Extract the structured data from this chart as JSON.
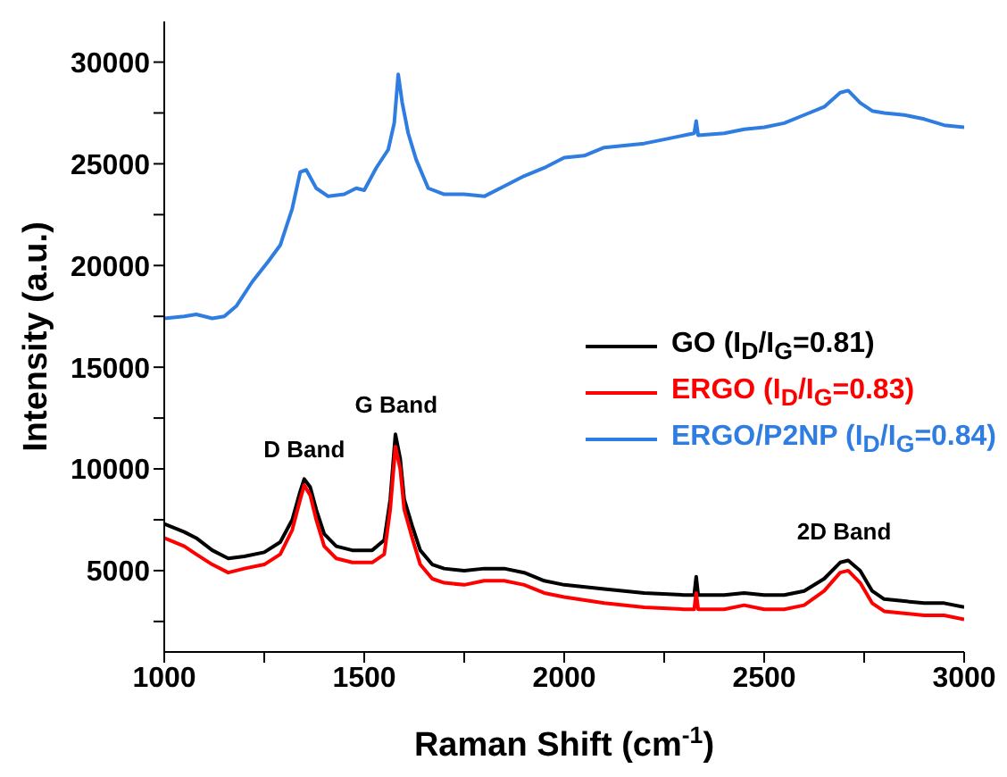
{
  "chart_data": {
    "type": "line",
    "xlabel": "Raman Shift (cm$^{-1}$)",
    "ylabel": "Intensity (a.u.)",
    "xlim": [
      1000,
      3000
    ],
    "xticks": [
      1000,
      {
        "value": 1250,
        "label": null
      },
      1500,
      {
        "value": 1750,
        "label": null
      },
      2000,
      {
        "value": 2250,
        "label": null
      },
      2500,
      {
        "value": 2750,
        "label": null
      },
      3000
    ],
    "ylim": [
      1000,
      32000
    ],
    "yticks": [
      {
        "value": 2500,
        "label": null
      },
      5000,
      {
        "value": 7500,
        "label": null
      },
      10000,
      {
        "value": 12500,
        "label": null
      },
      15000,
      {
        "value": 17500,
        "label": null
      },
      20000,
      {
        "value": 22500,
        "label": null
      },
      25000,
      {
        "value": 27500,
        "label": null
      },
      30000
    ],
    "grid": false,
    "legend": "right",
    "marker": "none",
    "line_style": "solid",
    "annotations": [
      {
        "text": "D Band",
        "x": 1350,
        "y": 9500
      },
      {
        "text": "G Band",
        "x": 1580,
        "y": 11700
      },
      {
        "text": "2D Band",
        "x": 2700,
        "y": 5500
      }
    ],
    "series": [
      {
        "name": "GO (I$_{D}$/I$_{G}$=0.81)",
        "color": "#000000",
        "x": [
          1000,
          1050,
          1080,
          1120,
          1160,
          1200,
          1250,
          1290,
          1320,
          1340,
          1350,
          1365,
          1380,
          1400,
          1430,
          1470,
          1520,
          1550,
          1565,
          1578,
          1590,
          1600,
          1620,
          1640,
          1670,
          1700,
          1750,
          1800,
          1850,
          1900,
          1950,
          2000,
          2100,
          2200,
          2300,
          2325,
          2330,
          2335,
          2400,
          2450,
          2500,
          2550,
          2600,
          2650,
          2690,
          2710,
          2740,
          2770,
          2800,
          2850,
          2900,
          2950,
          3000
        ],
        "values": [
          7300,
          6900,
          6600,
          6000,
          5600,
          5700,
          5900,
          6400,
          7500,
          8900,
          9500,
          9100,
          8000,
          6800,
          6200,
          6000,
          6000,
          6500,
          8500,
          11700,
          10500,
          8500,
          7200,
          6000,
          5300,
          5100,
          5000,
          5100,
          5100,
          4900,
          4500,
          4300,
          4100,
          3900,
          3800,
          3800,
          4700,
          3800,
          3800,
          3900,
          3800,
          3800,
          4000,
          4600,
          5400,
          5500,
          5000,
          4000,
          3600,
          3500,
          3400,
          3400,
          3200
        ]
      },
      {
        "name": "ERGO (I$_{D}$/I$_{G}$=0.83)",
        "color": "#ff0000",
        "x": [
          1000,
          1050,
          1080,
          1120,
          1160,
          1200,
          1250,
          1290,
          1320,
          1340,
          1350,
          1365,
          1380,
          1400,
          1430,
          1470,
          1520,
          1550,
          1565,
          1578,
          1590,
          1600,
          1620,
          1640,
          1670,
          1700,
          1750,
          1800,
          1850,
          1900,
          1950,
          2000,
          2100,
          2200,
          2300,
          2325,
          2330,
          2335,
          2400,
          2450,
          2500,
          2550,
          2600,
          2650,
          2690,
          2710,
          2740,
          2770,
          2800,
          2850,
          2900,
          2950,
          3000
        ],
        "values": [
          6600,
          6200,
          5800,
          5300,
          4900,
          5100,
          5300,
          5800,
          7000,
          8500,
          9200,
          8700,
          7500,
          6200,
          5600,
          5400,
          5400,
          5800,
          8000,
          11100,
          10000,
          8000,
          6600,
          5300,
          4600,
          4400,
          4300,
          4500,
          4500,
          4300,
          3900,
          3700,
          3400,
          3200,
          3100,
          3100,
          3900,
          3100,
          3100,
          3300,
          3100,
          3100,
          3300,
          4000,
          4900,
          5000,
          4400,
          3400,
          3000,
          2900,
          2800,
          2800,
          2600
        ]
      },
      {
        "name": "ERGO/P2NP (I$_{D}$/I$_{G}$=0.84)",
        "color": "#2f7de1",
        "x": [
          1000,
          1050,
          1080,
          1120,
          1150,
          1180,
          1220,
          1260,
          1290,
          1320,
          1340,
          1355,
          1380,
          1410,
          1450,
          1480,
          1500,
          1530,
          1560,
          1575,
          1585,
          1595,
          1610,
          1630,
          1660,
          1700,
          1750,
          1800,
          1850,
          1900,
          1950,
          2000,
          2050,
          2100,
          2150,
          2200,
          2250,
          2300,
          2325,
          2330,
          2335,
          2400,
          2450,
          2500,
          2550,
          2600,
          2650,
          2690,
          2710,
          2740,
          2770,
          2800,
          2850,
          2900,
          2950,
          3000
        ],
        "values": [
          17400,
          17500,
          17600,
          17400,
          17500,
          18000,
          19200,
          20200,
          21000,
          22800,
          24600,
          24700,
          23800,
          23400,
          23500,
          23800,
          23700,
          24800,
          25700,
          27000,
          29400,
          28000,
          26500,
          25200,
          23800,
          23500,
          23500,
          23400,
          23900,
          24400,
          24800,
          25300,
          25400,
          25800,
          25900,
          26000,
          26200,
          26400,
          26500,
          27100,
          26400,
          26500,
          26700,
          26800,
          27000,
          27400,
          27800,
          28500,
          28600,
          28000,
          27600,
          27500,
          27400,
          27200,
          26900,
          26800
        ]
      }
    ]
  }
}
